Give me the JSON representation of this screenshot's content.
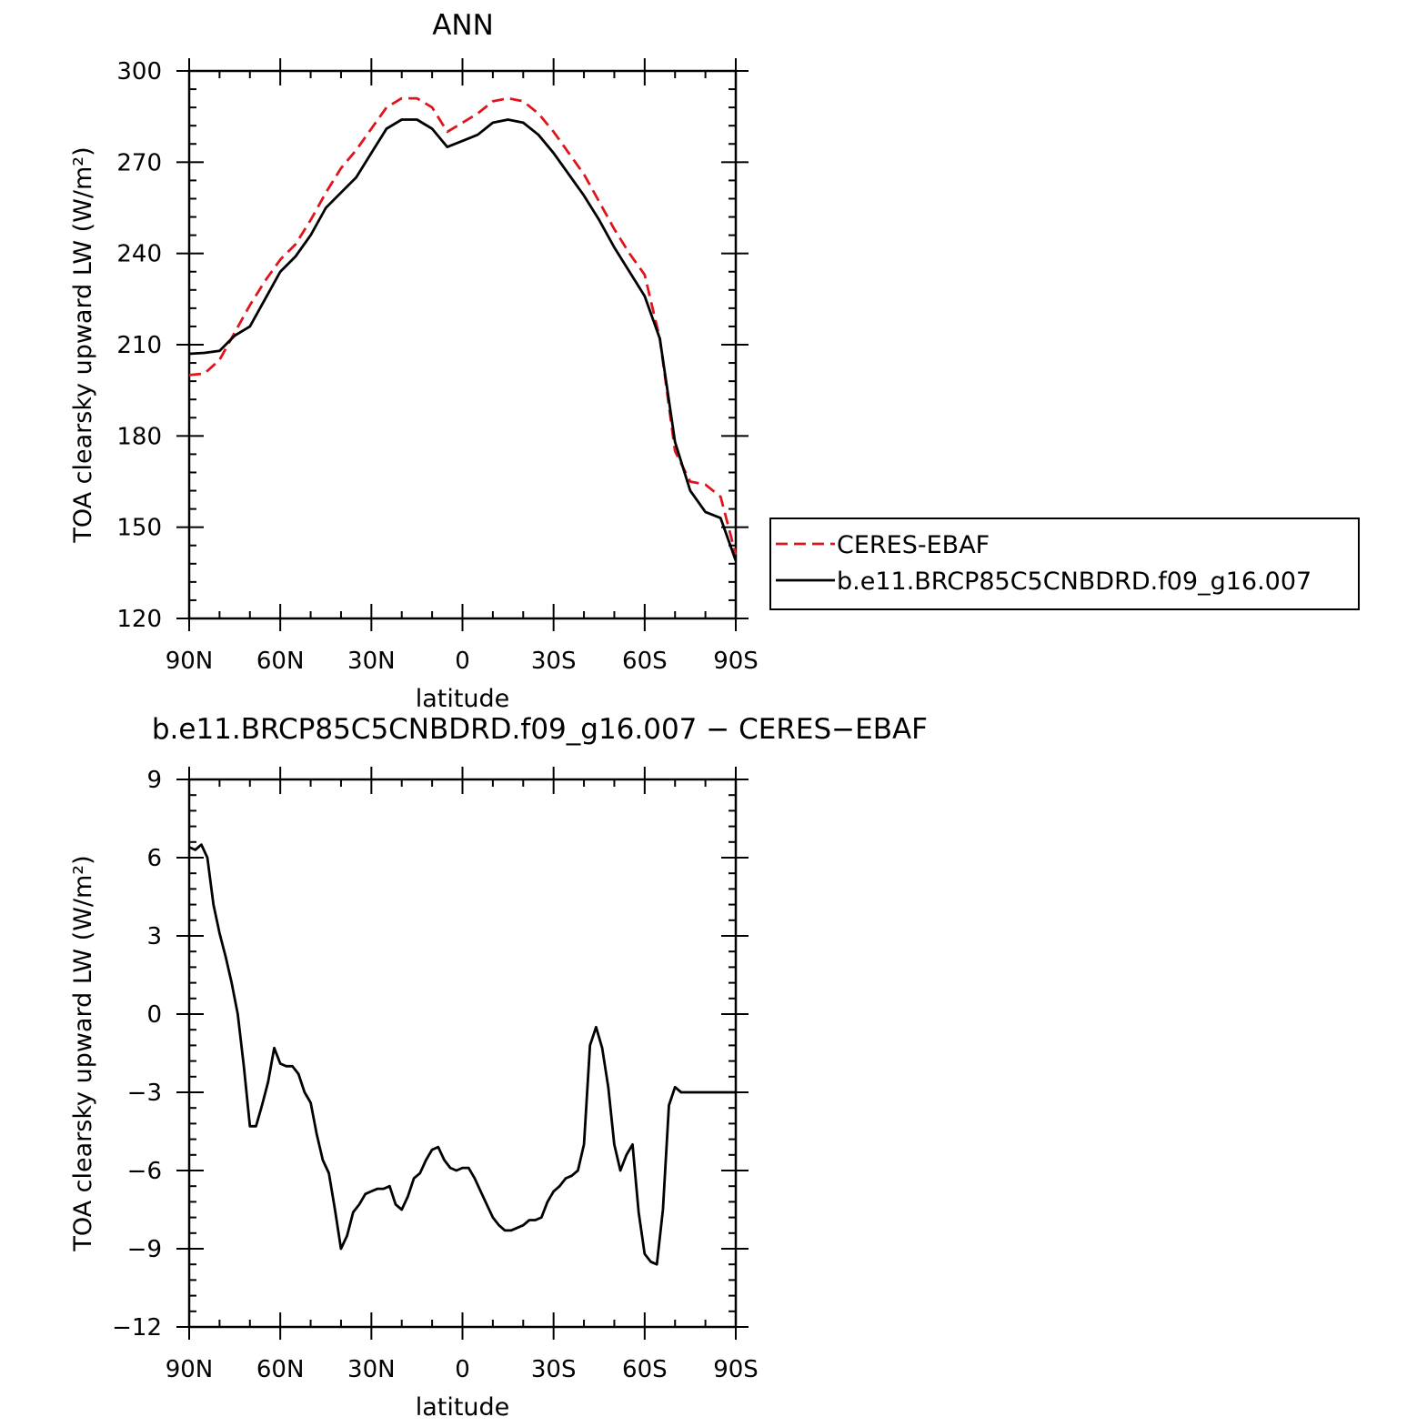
{
  "chart_data": [
    {
      "type": "line",
      "title": "ANN",
      "xlabel": "latitude",
      "ylabel": "TOA clearsky upward LW (W/m²)",
      "ylim": [
        120,
        300
      ],
      "xlim": [
        90,
        -90
      ],
      "x_ticks": [
        90,
        60,
        30,
        0,
        -30,
        -60,
        -90
      ],
      "x_tick_labels": [
        "90N",
        "60N",
        "30N",
        "0",
        "30S",
        "60S",
        "90S"
      ],
      "y_ticks": [
        120,
        150,
        180,
        210,
        240,
        270,
        300
      ],
      "y_tick_labels": [
        "120",
        "150",
        "180",
        "210",
        "240",
        "270",
        "300"
      ],
      "grid": false,
      "legend": "right",
      "series": [
        {
          "name": "CERES-EBAF",
          "color": "#e0141c",
          "dash": "dashed",
          "x": [
            90,
            85,
            80,
            75,
            70,
            65,
            60,
            55,
            50,
            45,
            40,
            35,
            30,
            25,
            20,
            15,
            10,
            5,
            0,
            -5,
            -10,
            -15,
            -20,
            -25,
            -30,
            -35,
            -40,
            -45,
            -50,
            -55,
            -60,
            -65,
            -70,
            -75,
            -80,
            -85,
            -90
          ],
          "values": [
            200,
            200.5,
            205,
            214,
            223,
            231,
            238,
            243,
            251,
            260,
            268,
            274,
            281,
            288,
            291,
            291,
            288,
            280,
            283,
            286,
            290,
            291,
            290,
            286,
            280,
            273,
            266,
            257,
            248,
            240,
            233,
            212,
            175,
            165,
            164,
            160,
            141
          ]
        },
        {
          "name": "b.e11.BRCP85C5CNBDRD.f09_g16.007",
          "color": "#000000",
          "dash": "solid",
          "x": [
            90,
            85,
            80,
            75,
            70,
            65,
            60,
            55,
            50,
            45,
            40,
            35,
            30,
            25,
            20,
            15,
            10,
            5,
            0,
            -5,
            -10,
            -15,
            -20,
            -25,
            -30,
            -35,
            -40,
            -45,
            -50,
            -55,
            -60,
            -65,
            -70,
            -75,
            -80,
            -85,
            -90
          ],
          "values": [
            207,
            207.3,
            208,
            213,
            216,
            225,
            234,
            239,
            246,
            255,
            260,
            265,
            273,
            281,
            284,
            284,
            281,
            275,
            277,
            279,
            283,
            284,
            283,
            279,
            273,
            266,
            259,
            251,
            242,
            234,
            226,
            212,
            178,
            162,
            155,
            153,
            139
          ]
        }
      ]
    },
    {
      "type": "line",
      "title": "b.e11.BRCP85C5CNBDRD.f09_g16.007 − CERES−EBAF",
      "xlabel": "latitude",
      "ylabel": "TOA clearsky upward LW (W/m²)",
      "ylim": [
        -12,
        9
      ],
      "xlim": [
        90,
        -90
      ],
      "x_ticks": [
        90,
        60,
        30,
        0,
        -30,
        -60,
        -90
      ],
      "x_tick_labels": [
        "90N",
        "60N",
        "30N",
        "0",
        "30S",
        "60S",
        "90S"
      ],
      "y_ticks": [
        -12,
        -9,
        -6,
        -3,
        0,
        3,
        6,
        9
      ],
      "y_tick_labels": [
        "−12",
        "−9",
        "−6",
        "−3",
        "0",
        "3",
        "6",
        "9"
      ],
      "grid": false,
      "series": [
        {
          "color": "#000000",
          "dash": "solid",
          "x": [
            90,
            88,
            86,
            84,
            82,
            80,
            78,
            76,
            74,
            72,
            70,
            68,
            66,
            64,
            62,
            60,
            58,
            56,
            54,
            52,
            50,
            48,
            46,
            44,
            42,
            40,
            38,
            36,
            34,
            32,
            30,
            28,
            26,
            24,
            22,
            20,
            18,
            16,
            14,
            12,
            10,
            8,
            6,
            4,
            2,
            0,
            -2,
            -4,
            -6,
            -8,
            -10,
            -12,
            -14,
            -16,
            -18,
            -20,
            -22,
            -24,
            -26,
            -28,
            -30,
            -32,
            -34,
            -36,
            -38,
            -40,
            -42,
            -44,
            -46,
            -48,
            -50,
            -52,
            -54,
            -56,
            -58,
            -60,
            -62,
            -64,
            -66,
            -68,
            -70,
            -72,
            -74,
            -76,
            -78,
            -80,
            -82,
            -84,
            -86,
            -88,
            -90
          ],
          "values": [
            6.4,
            6.3,
            6.5,
            6.0,
            4.2,
            3.1,
            2.2,
            1.2,
            0,
            -2.0,
            -4.3,
            -4.3,
            -3.5,
            -2.6,
            -1.3,
            -1.9,
            -2.0,
            -2.0,
            -2.3,
            -3.0,
            -3.4,
            -4.6,
            -5.6,
            -6.1,
            -7.5,
            -9.0,
            -8.5,
            -7.6,
            -7.3,
            -6.9,
            -6.8,
            -6.7,
            -6.7,
            -6.6,
            -7.3,
            -7.5,
            -7.0,
            -6.3,
            -6.1,
            -5.6,
            -5.2,
            -5.1,
            -5.6,
            -5.9,
            -6.0,
            -5.9,
            -5.9,
            -6.3,
            -6.8,
            -7.3,
            -7.8,
            -8.1,
            -8.3,
            -8.3,
            -8.2,
            -8.1,
            -7.9,
            -7.9,
            -7.8,
            -7.2,
            -6.8,
            -6.6,
            -6.3,
            -6.2,
            -6.0,
            -5.0,
            -1.2,
            -0.5,
            -1.3,
            -2.8,
            -5.0,
            -6.0,
            -5.4,
            -5.0,
            -7.6,
            -9.2,
            -9.5,
            -9.6,
            -7.5,
            -3.5,
            -2.8,
            -3.0,
            -3.0,
            -3.0,
            -3.0,
            -3.0,
            -3.0,
            -3.0,
            -3.0,
            -3.0,
            -3.0
          ]
        }
      ]
    }
  ]
}
